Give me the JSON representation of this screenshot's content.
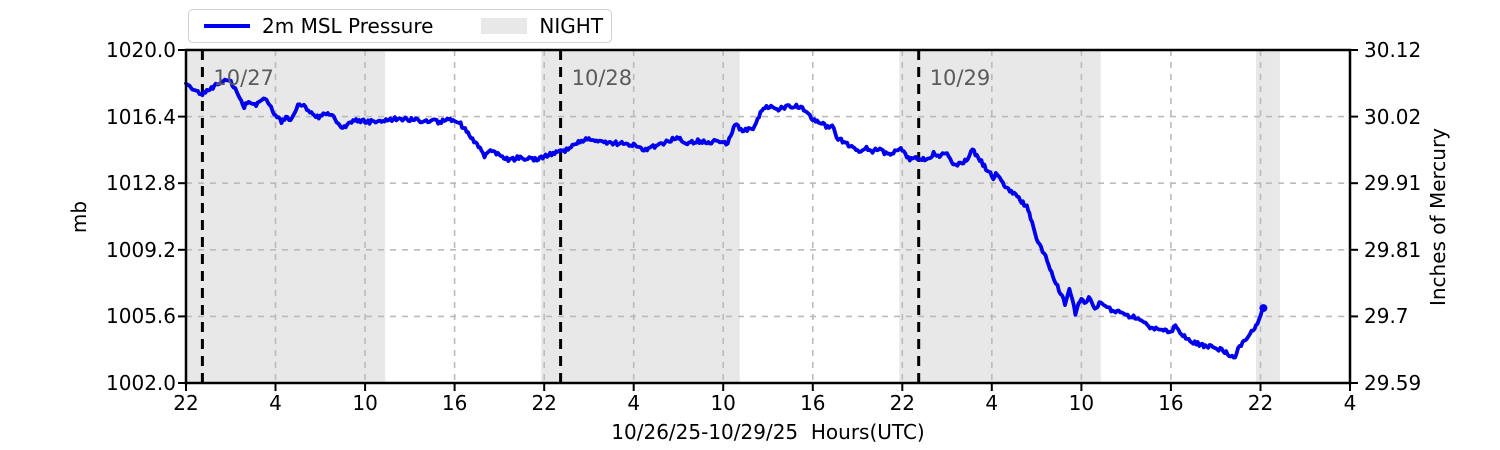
{
  "colors": {
    "line": "#0000ee",
    "night": "#e8e8e8",
    "grid": "#bbbbbb",
    "frame": "#000000",
    "annotation": "#5a5a5a"
  },
  "legend": {
    "night_label": "NIGHT"
  },
  "chart_data": {
    "type": "line",
    "title": "",
    "xlabel": "10/26/25-10/29/25  Hours(UTC)",
    "ylabel_left": "mb",
    "ylabel_right": "Inches of Mercury",
    "x_range": [
      0,
      78
    ],
    "x_start_clock": "22:00 UTC 10/26/25",
    "x_tick_hours": [
      0,
      6,
      12,
      18,
      24,
      30,
      36,
      42,
      48,
      54,
      60,
      66,
      72,
      78
    ],
    "x_tick_labels": [
      "22",
      "4",
      "10",
      "16",
      "22",
      "4",
      "10",
      "16",
      "22",
      "4",
      "10",
      "16",
      "22",
      "4"
    ],
    "y_left": {
      "min": 1002.0,
      "max": 1020.0,
      "tick_values": [
        1020.0,
        1016.4,
        1012.8,
        1009.2,
        1005.6,
        1002.0
      ],
      "tick_labels": [
        "1020.0",
        "1016.4",
        "1012.8",
        "1009.2",
        "1005.6",
        "1002.0"
      ]
    },
    "y_right": {
      "tick_labels": [
        "30.12",
        "30.02",
        "29.91",
        "29.81",
        "29.7",
        "29.59"
      ]
    },
    "grid": true,
    "legend_position": "top-left",
    "night_bands": [
      [
        0,
        13.35
      ],
      [
        23.8,
        37.1
      ],
      [
        47.8,
        61.3
      ],
      [
        71.7,
        73.3
      ]
    ],
    "day_lines": [
      {
        "hour": 1.1,
        "label": "10/27"
      },
      {
        "hour": 25.1,
        "label": "10/28"
      },
      {
        "hour": 49.1,
        "label": "10/29"
      }
    ],
    "series": [
      {
        "name": "2m MSL Pressure",
        "color": "#0000ee",
        "units": "mb",
        "points": [
          [
            0,
            1018.1
          ],
          [
            0.5,
            1017.9
          ],
          [
            1,
            1017.6
          ],
          [
            1.6,
            1017.9
          ],
          [
            2.5,
            1018.4
          ],
          [
            3,
            1018.3
          ],
          [
            3.6,
            1017.4
          ],
          [
            3.9,
            1016.9
          ],
          [
            4.2,
            1017.3
          ],
          [
            4.7,
            1017.0
          ],
          [
            5.2,
            1017.4
          ],
          [
            5.6,
            1017.0
          ],
          [
            6,
            1016.5
          ],
          [
            6.4,
            1016.1
          ],
          [
            6.7,
            1016.4
          ],
          [
            7,
            1016.1
          ],
          [
            7.5,
            1017.1
          ],
          [
            7.8,
            1017.0
          ],
          [
            8.4,
            1016.6
          ],
          [
            8.9,
            1016.3
          ],
          [
            9.4,
            1016.6
          ],
          [
            10,
            1016.3
          ],
          [
            10.4,
            1015.8
          ],
          [
            10.9,
            1016.0
          ],
          [
            11.4,
            1016.2
          ],
          [
            12.3,
            1016.1
          ],
          [
            13.3,
            1016.2
          ],
          [
            14.3,
            1016.3
          ],
          [
            15.3,
            1016.2
          ],
          [
            16.2,
            1016.2
          ],
          [
            17,
            1016.1
          ],
          [
            17.7,
            1016.3
          ],
          [
            18.4,
            1016.0
          ],
          [
            19,
            1015.4
          ],
          [
            19.6,
            1014.8
          ],
          [
            20,
            1014.2
          ],
          [
            20.4,
            1014.6
          ],
          [
            21,
            1014.3
          ],
          [
            21.7,
            1014.0
          ],
          [
            22.2,
            1014.2
          ],
          [
            23.5,
            1014.05
          ],
          [
            24.2,
            1014.3
          ],
          [
            24.7,
            1014.4
          ],
          [
            25.5,
            1014.6
          ],
          [
            26.2,
            1015.0
          ],
          [
            26.9,
            1015.25
          ],
          [
            27.7,
            1015.1
          ],
          [
            28.4,
            1015.0
          ],
          [
            29.1,
            1014.95
          ],
          [
            30,
            1014.9
          ],
          [
            30.8,
            1014.6
          ],
          [
            31.8,
            1014.9
          ],
          [
            32.9,
            1015.25
          ],
          [
            33.6,
            1014.95
          ],
          [
            34.2,
            1015.1
          ],
          [
            34.9,
            1015.0
          ],
          [
            35.6,
            1015.1
          ],
          [
            36.3,
            1014.95
          ],
          [
            36.8,
            1016.05
          ],
          [
            37.3,
            1015.6
          ],
          [
            38,
            1015.8
          ],
          [
            38.5,
            1016.6
          ],
          [
            38.9,
            1017.0
          ],
          [
            39.6,
            1016.75
          ],
          [
            40.1,
            1016.9
          ],
          [
            40.7,
            1017.0
          ],
          [
            41.4,
            1016.8
          ],
          [
            42,
            1016.2
          ],
          [
            42.6,
            1016.05
          ],
          [
            43,
            1015.8
          ],
          [
            43.3,
            1015.95
          ],
          [
            43.6,
            1015.3
          ],
          [
            44.3,
            1014.95
          ],
          [
            44.7,
            1014.7
          ],
          [
            45.2,
            1014.5
          ],
          [
            45.6,
            1014.75
          ],
          [
            46,
            1014.5
          ],
          [
            46.5,
            1014.7
          ],
          [
            47,
            1014.3
          ],
          [
            47.4,
            1014.5
          ],
          [
            47.9,
            1014.7
          ],
          [
            48.3,
            1014.2
          ],
          [
            48.7,
            1014.05
          ],
          [
            49.1,
            1014.2
          ],
          [
            49.7,
            1014.05
          ],
          [
            50.1,
            1014.4
          ],
          [
            50.5,
            1014.3
          ],
          [
            51,
            1014.5
          ],
          [
            51.4,
            1013.9
          ],
          [
            51.9,
            1013.8
          ],
          [
            52.3,
            1014.05
          ],
          [
            52.7,
            1014.6
          ],
          [
            53.2,
            1014.05
          ],
          [
            53.7,
            1013.5
          ],
          [
            54.1,
            1013.1
          ],
          [
            54.35,
            1013.35
          ],
          [
            54.55,
            1013.0
          ],
          [
            55,
            1012.6
          ],
          [
            55.4,
            1012.3
          ],
          [
            55.9,
            1011.9
          ],
          [
            56.35,
            1011.5
          ],
          [
            56.6,
            1010.9
          ],
          [
            57,
            1009.8
          ],
          [
            57.5,
            1009.0
          ],
          [
            57.9,
            1008.2
          ],
          [
            58.2,
            1007.6
          ],
          [
            58.5,
            1007.0
          ],
          [
            58.9,
            1006.3
          ],
          [
            59.2,
            1007.1
          ],
          [
            59.6,
            1005.8
          ],
          [
            59.9,
            1006.5
          ],
          [
            60.2,
            1006.4
          ],
          [
            60.6,
            1006.6
          ],
          [
            60.9,
            1005.95
          ],
          [
            61.3,
            1006.4
          ],
          [
            61.6,
            1006.1
          ],
          [
            62,
            1005.95
          ],
          [
            62.6,
            1005.85
          ],
          [
            63.3,
            1005.6
          ],
          [
            64,
            1005.4
          ],
          [
            64.6,
            1005.05
          ],
          [
            65.3,
            1004.9
          ],
          [
            66,
            1004.8
          ],
          [
            66.3,
            1005.05
          ],
          [
            66.6,
            1004.7
          ],
          [
            67.3,
            1004.25
          ],
          [
            68,
            1004.05
          ],
          [
            68.6,
            1004.0
          ],
          [
            69.3,
            1003.8
          ],
          [
            70,
            1003.5
          ],
          [
            70.3,
            1003.4
          ],
          [
            70.6,
            1004.0
          ],
          [
            71.3,
            1004.6
          ],
          [
            71.9,
            1005.4
          ],
          [
            72.2,
            1006.05
          ]
        ]
      }
    ]
  }
}
